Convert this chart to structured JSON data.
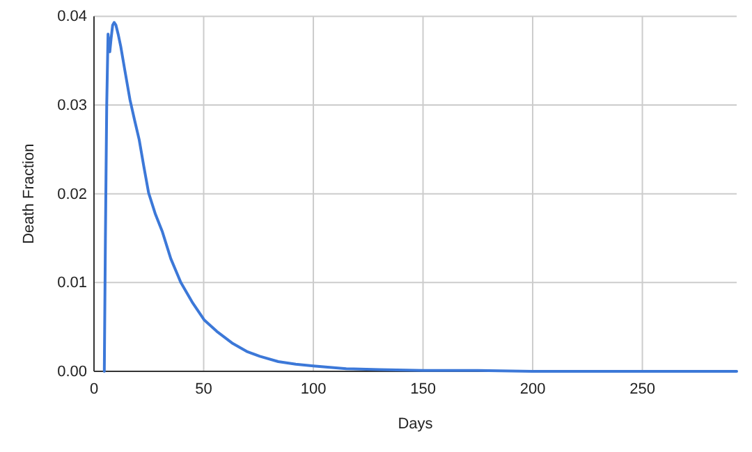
{
  "chart_data": {
    "type": "line",
    "xlabel": "Days",
    "ylabel": "Death Fraction",
    "x": [
      4.7,
      5.2,
      5.8,
      6.4,
      6.8,
      7.2,
      7.8,
      8.5,
      9.2,
      10,
      11,
      12.2,
      14,
      16.4,
      18.5,
      20.6,
      22.7,
      24.9,
      28,
      31.2,
      35,
      39.6,
      45,
      50.2,
      56,
      62.9,
      70,
      75.6,
      84,
      92,
      100,
      115,
      130,
      150,
      175,
      200,
      250,
      293
    ],
    "series": [
      {
        "color": "#3c78d8",
        "values": [
          0,
          0.015,
          0.03,
          0.038,
          0.037,
          0.036,
          0.0375,
          0.039,
          0.0393,
          0.039,
          0.038,
          0.0366,
          0.034,
          0.0306,
          0.0283,
          0.0261,
          0.0231,
          0.0201,
          0.0177,
          0.0157,
          0.0127,
          0.01,
          0.0077,
          0.0058,
          0.0045,
          0.0032,
          0.0022,
          0.0017,
          0.0011,
          0.0008,
          0.0006,
          0.0003,
          0.0002,
          0.0001,
          0.0001,
          0,
          0,
          0
        ]
      }
    ],
    "xlim": [
      0,
      293
    ],
    "ylim": [
      0,
      0.04
    ],
    "xticks": [
      0,
      50,
      100,
      150,
      200,
      250
    ],
    "yticks": [
      {
        "value": 0,
        "label": "0.00"
      },
      {
        "value": 0.01,
        "label": "0.01"
      },
      {
        "value": 0.02,
        "label": "0.02"
      },
      {
        "value": 0.03,
        "label": "0.03"
      },
      {
        "value": 0.04,
        "label": "0.04"
      }
    ],
    "grid": true,
    "marker": "none",
    "line_style": "solid"
  }
}
